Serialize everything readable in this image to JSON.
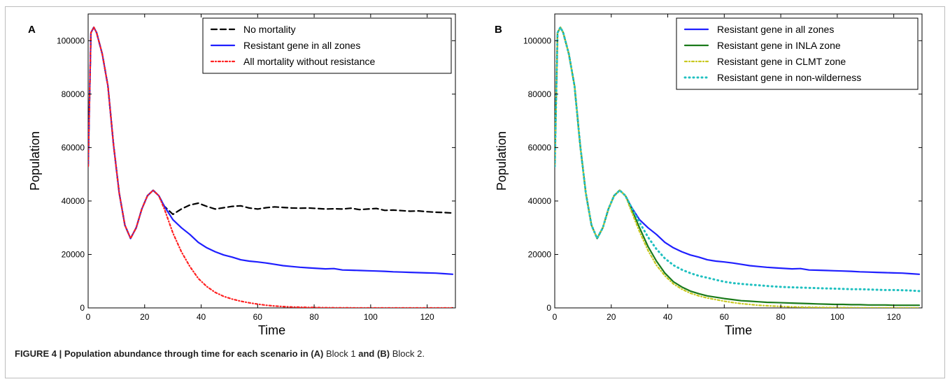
{
  "caption": {
    "label": "FIGURE 4 | Population abundance through time for each scenario in",
    "a_ref": "(A)",
    "block1_bold": "Block 1",
    "and_word": "and",
    "b_ref": "(B)",
    "block2": "Block 2."
  },
  "chart_data": [
    {
      "type": "line",
      "panel_label": "A",
      "xlabel": "Time",
      "ylabel": "Population",
      "xlim": [
        0,
        130
      ],
      "ylim": [
        0,
        110000
      ],
      "xticks": [
        0,
        20,
        40,
        60,
        80,
        100,
        120
      ],
      "yticks": [
        0,
        20000,
        40000,
        60000,
        80000,
        100000
      ],
      "grid": false,
      "legend_position": "top-right",
      "series": [
        {
          "name": "No mortality",
          "color": "#000000",
          "style": "dashed",
          "x": [
            0,
            1,
            2,
            3,
            5,
            7,
            9,
            11,
            13,
            15,
            17,
            19,
            21,
            23,
            25,
            27,
            30,
            33,
            36,
            39,
            42,
            45,
            48,
            51,
            54,
            57,
            60,
            63,
            66,
            69,
            72,
            75,
            78,
            81,
            84,
            87,
            90,
            93,
            96,
            99,
            102,
            105,
            108,
            111,
            114,
            117,
            120,
            123,
            126,
            129
          ],
          "y": [
            53000,
            103000,
            105000,
            103000,
            95000,
            83000,
            61000,
            43000,
            31000,
            26000,
            30000,
            37000,
            42000,
            44000,
            42000,
            38000,
            35000,
            37000,
            38500,
            39200,
            38000,
            37000,
            37500,
            38000,
            38200,
            37400,
            37000,
            37500,
            37800,
            37600,
            37400,
            37300,
            37400,
            37200,
            37000,
            37100,
            37000,
            37300,
            36800,
            37000,
            37200,
            36500,
            36600,
            36400,
            36200,
            36300,
            36000,
            35800,
            35700,
            35500
          ]
        },
        {
          "name": "Resistant gene in all zones",
          "color": "#1f1fff",
          "style": "solid",
          "x": [
            0,
            1,
            2,
            3,
            5,
            7,
            9,
            11,
            13,
            15,
            17,
            19,
            21,
            23,
            25,
            27,
            30,
            33,
            36,
            39,
            42,
            45,
            48,
            51,
            54,
            57,
            60,
            63,
            66,
            69,
            72,
            75,
            78,
            81,
            84,
            87,
            90,
            93,
            96,
            99,
            102,
            105,
            108,
            111,
            114,
            117,
            120,
            123,
            126,
            129
          ],
          "y": [
            53000,
            103000,
            105000,
            103000,
            95000,
            83000,
            61000,
            43000,
            31000,
            26000,
            30000,
            37000,
            42000,
            44000,
            42000,
            38000,
            33000,
            30000,
            27500,
            24500,
            22500,
            21000,
            19800,
            19000,
            18000,
            17500,
            17200,
            16800,
            16300,
            15800,
            15500,
            15200,
            15000,
            14800,
            14600,
            14700,
            14200,
            14100,
            14000,
            13900,
            13800,
            13700,
            13500,
            13400,
            13300,
            13200,
            13100,
            13000,
            12800,
            12600
          ]
        },
        {
          "name": "All mortality without resistance",
          "color": "#ff2020",
          "style": "dash-dot",
          "x": [
            0,
            1,
            2,
            3,
            5,
            7,
            9,
            11,
            13,
            15,
            17,
            19,
            21,
            23,
            25,
            27,
            30,
            33,
            36,
            39,
            42,
            45,
            48,
            51,
            54,
            57,
            60,
            63,
            66,
            69,
            72,
            75,
            78,
            81,
            84,
            87,
            90,
            93,
            96,
            99,
            102,
            105,
            108,
            111,
            114,
            117,
            120,
            123,
            126,
            129
          ],
          "y": [
            53000,
            103000,
            105000,
            103000,
            95000,
            83000,
            61000,
            43000,
            31000,
            26000,
            30000,
            37000,
            42000,
            44000,
            42000,
            37000,
            28000,
            21000,
            15500,
            11000,
            8000,
            5800,
            4300,
            3300,
            2500,
            1900,
            1400,
            1000,
            700,
            500,
            350,
            250,
            180,
            120,
            80,
            50,
            30,
            20,
            10,
            5,
            0,
            0,
            0,
            0,
            0,
            0,
            0,
            0,
            0,
            0
          ]
        }
      ]
    },
    {
      "type": "line",
      "panel_label": "B",
      "xlabel": "Time",
      "ylabel": "Population",
      "xlim": [
        0,
        130
      ],
      "ylim": [
        0,
        110000
      ],
      "xticks": [
        0,
        20,
        40,
        60,
        80,
        100,
        120
      ],
      "yticks": [
        0,
        20000,
        40000,
        60000,
        80000,
        100000
      ],
      "grid": false,
      "legend_position": "top-right",
      "series": [
        {
          "name": "Resistant gene in all zones",
          "color": "#1f1fff",
          "style": "solid",
          "x": [
            0,
            1,
            2,
            3,
            5,
            7,
            9,
            11,
            13,
            15,
            17,
            19,
            21,
            23,
            25,
            27,
            30,
            33,
            36,
            39,
            42,
            45,
            48,
            51,
            54,
            57,
            60,
            63,
            66,
            69,
            72,
            75,
            78,
            81,
            84,
            87,
            90,
            93,
            96,
            99,
            102,
            105,
            108,
            111,
            114,
            117,
            120,
            123,
            126,
            129
          ],
          "y": [
            53000,
            103000,
            105000,
            103000,
            95000,
            83000,
            61000,
            43000,
            31000,
            26000,
            30000,
            37000,
            42000,
            44000,
            42000,
            38000,
            33000,
            30000,
            27500,
            24500,
            22500,
            21000,
            19800,
            19000,
            18000,
            17500,
            17200,
            16800,
            16300,
            15800,
            15500,
            15200,
            15000,
            14800,
            14600,
            14700,
            14200,
            14100,
            14000,
            13900,
            13800,
            13700,
            13500,
            13400,
            13300,
            13200,
            13100,
            13000,
            12800,
            12600
          ]
        },
        {
          "name": "Resistant gene in INLA zone",
          "color": "#1a7a1a",
          "style": "solid",
          "x": [
            0,
            1,
            2,
            3,
            5,
            7,
            9,
            11,
            13,
            15,
            17,
            19,
            21,
            23,
            25,
            27,
            30,
            33,
            36,
            39,
            42,
            45,
            48,
            51,
            54,
            57,
            60,
            63,
            66,
            69,
            72,
            75,
            78,
            81,
            84,
            87,
            90,
            93,
            96,
            99,
            102,
            105,
            108,
            111,
            114,
            117,
            120,
            123,
            126,
            129
          ],
          "y": [
            53000,
            103000,
            105000,
            103000,
            95000,
            83000,
            61000,
            43000,
            31000,
            26000,
            30000,
            37000,
            42000,
            44000,
            42000,
            37500,
            30000,
            23000,
            17500,
            13000,
            9800,
            7800,
            6300,
            5300,
            4500,
            4000,
            3500,
            3100,
            2700,
            2500,
            2300,
            2100,
            2000,
            1900,
            1800,
            1700,
            1600,
            1500,
            1400,
            1300,
            1300,
            1200,
            1200,
            1100,
            1100,
            1100,
            1000,
            1000,
            1000,
            1000
          ]
        },
        {
          "name": "Resistant gene in CLMT zone",
          "color": "#c8c820",
          "style": "dash-dot",
          "x": [
            0,
            1,
            2,
            3,
            5,
            7,
            9,
            11,
            13,
            15,
            17,
            19,
            21,
            23,
            25,
            27,
            30,
            33,
            36,
            39,
            42,
            45,
            48,
            51,
            54,
            57,
            60,
            63,
            66,
            69,
            72,
            75,
            78,
            81,
            84,
            87,
            90,
            93,
            96,
            99,
            102,
            105,
            108,
            111,
            114,
            117,
            120,
            123,
            126,
            129
          ],
          "y": [
            53000,
            103000,
            105000,
            103000,
            95000,
            83000,
            61000,
            43000,
            31000,
            26000,
            30000,
            37000,
            42000,
            44000,
            42000,
            36500,
            28500,
            21500,
            16000,
            12000,
            9000,
            7000,
            5500,
            4500,
            3700,
            3100,
            2500,
            2000,
            1600,
            1300,
            1000,
            800,
            650,
            500,
            400,
            320,
            260,
            200,
            150,
            120,
            100,
            80,
            60,
            50,
            40,
            30,
            20,
            10,
            5,
            0
          ]
        },
        {
          "name": "Resistant gene in non-wilderness",
          "color": "#20c0c0",
          "style": "dotted",
          "x": [
            0,
            1,
            2,
            3,
            5,
            7,
            9,
            11,
            13,
            15,
            17,
            19,
            21,
            23,
            25,
            27,
            30,
            33,
            36,
            39,
            42,
            45,
            48,
            51,
            54,
            57,
            60,
            63,
            66,
            69,
            72,
            75,
            78,
            81,
            84,
            87,
            90,
            93,
            96,
            99,
            102,
            105,
            108,
            111,
            114,
            117,
            120,
            123,
            126,
            129
          ],
          "y": [
            53000,
            103000,
            105000,
            103000,
            95000,
            83000,
            61000,
            43000,
            31000,
            26000,
            30000,
            37000,
            42000,
            44000,
            42000,
            38000,
            32000,
            26500,
            22000,
            18500,
            16000,
            14300,
            13000,
            12000,
            11300,
            10500,
            9800,
            9300,
            9000,
            8700,
            8500,
            8200,
            8000,
            7800,
            7700,
            7600,
            7500,
            7400,
            7300,
            7200,
            7100,
            7000,
            7000,
            6900,
            6800,
            6700,
            6700,
            6600,
            6500,
            6300
          ]
        }
      ]
    }
  ]
}
